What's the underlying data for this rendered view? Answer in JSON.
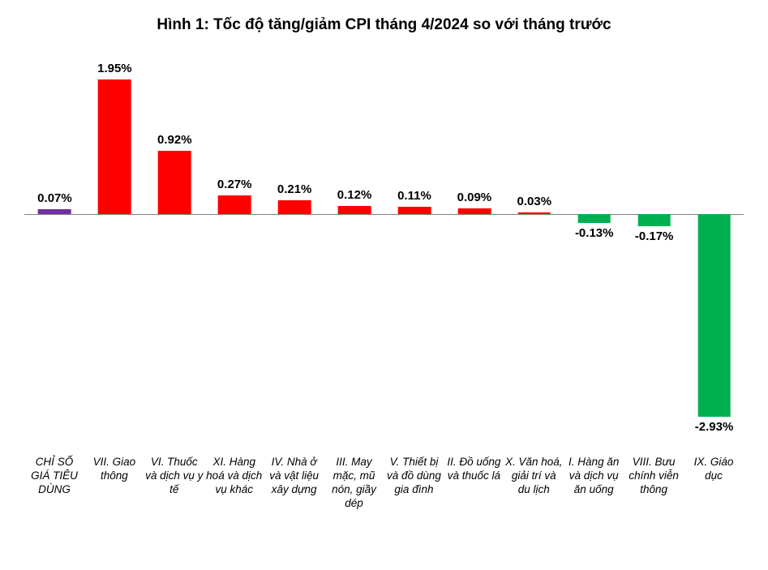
{
  "chart": {
    "type": "bar",
    "title": "Hình 1: Tốc độ tăng/giảm CPI tháng 4/2024 so với tháng trước",
    "title_fontsize": 19,
    "title_fontweight": "bold",
    "background_color": "#ffffff",
    "baseline_color": "#808080",
    "ylim": [
      -3.2,
      2.2
    ],
    "label_fontsize": 15,
    "label_fontweight": "bold",
    "xaxis_fontsize": 13.5,
    "xaxis_fontstyle": "italic",
    "bar_width_ratio": 0.55,
    "colors": {
      "cpi_index": "#7030a0",
      "positive": "#ff0000",
      "negative": "#00b050"
    },
    "series": [
      {
        "label": "CHỈ SỐ GIÁ TIÊU DÙNG",
        "value": 0.07,
        "value_text": "0.07%",
        "color_key": "cpi_index"
      },
      {
        "label": "VII. Giao thông",
        "value": 1.95,
        "value_text": "1.95%",
        "color_key": "positive"
      },
      {
        "label": "VI. Thuốc và dịch vụ y tế",
        "value": 0.92,
        "value_text": "0.92%",
        "color_key": "positive"
      },
      {
        "label": "XI. Hàng hoá và dịch vụ khác",
        "value": 0.27,
        "value_text": "0.27%",
        "color_key": "positive"
      },
      {
        "label": "IV. Nhà ở và vật liệu xây dựng",
        "value": 0.21,
        "value_text": "0.21%",
        "color_key": "positive"
      },
      {
        "label": "III. May mặc, mũ nón, giầy dép",
        "value": 0.12,
        "value_text": "0.12%",
        "color_key": "positive"
      },
      {
        "label": "V. Thiết bị và đồ dùng gia đình",
        "value": 0.11,
        "value_text": "0.11%",
        "color_key": "positive"
      },
      {
        "label": "II. Đồ uống và thuốc lá",
        "value": 0.09,
        "value_text": "0.09%",
        "color_key": "positive"
      },
      {
        "label": "X. Văn hoá, giải trí và du lịch",
        "value": 0.03,
        "value_text": "0.03%",
        "color_key": "positive"
      },
      {
        "label": "I. Hàng ăn và dịch vụ ăn uống",
        "value": -0.13,
        "value_text": "-0.13%",
        "color_key": "negative"
      },
      {
        "label": "VIII. Bưu chính viễn thông",
        "value": -0.17,
        "value_text": "-0.17%",
        "color_key": "negative"
      },
      {
        "label": "IX. Giáo dục",
        "value": -2.93,
        "value_text": "-2.93%",
        "color_key": "negative"
      }
    ]
  }
}
